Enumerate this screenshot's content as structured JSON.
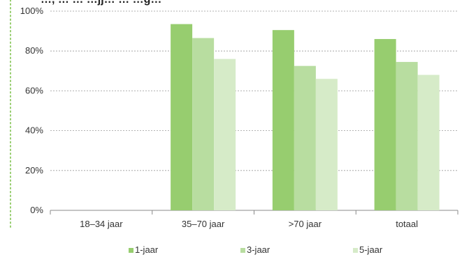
{
  "chart_data": {
    "type": "bar",
    "title_fragment": "…, … … …jj… … …g…",
    "categories": [
      "18–34 jaar",
      "35–70 jaar",
      ">70 jaar",
      "totaal"
    ],
    "series": [
      {
        "name": "1-jaar",
        "values": [
          null,
          93.5,
          90.5,
          86.0
        ],
        "color": "#97cd6f"
      },
      {
        "name": "3-jaar",
        "values": [
          null,
          86.5,
          72.5,
          74.5
        ],
        "color": "#b8dda0"
      },
      {
        "name": "5-jaar",
        "values": [
          null,
          76.0,
          66.0,
          68.0
        ],
        "color": "#d6ebc8"
      }
    ],
    "ylim": [
      0,
      100
    ],
    "yticks": [
      0,
      20,
      40,
      60,
      80,
      100
    ],
    "ytick_labels": [
      "0%",
      "20%",
      "40%",
      "60%",
      "80%",
      "100%"
    ],
    "grid": "horizontal, dashed",
    "legend_position": "bottom",
    "colors": {
      "axis": "#888888",
      "grid": "#999999",
      "accent_border": "#97cd6f",
      "text": "#333333"
    }
  }
}
